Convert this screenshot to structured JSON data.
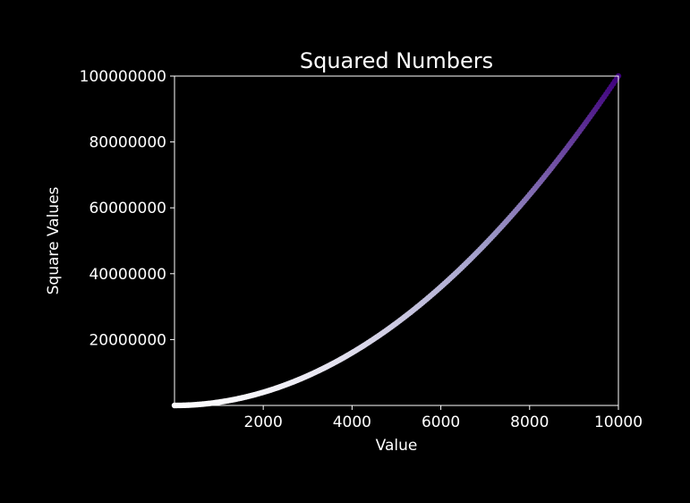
{
  "chart_data": {
    "type": "scatter",
    "title": "Squared Numbers",
    "xlabel": "Value",
    "ylabel": "Square Values",
    "x_range": [
      1,
      10000
    ],
    "xlim": [
      1,
      10000
    ],
    "ylim": [
      1,
      100000000
    ],
    "x_ticks": [
      2000,
      4000,
      6000,
      8000,
      10000
    ],
    "x_tick_labels": [
      "2000",
      "4000",
      "6000",
      "8000",
      "10000"
    ],
    "y_ticks": [
      20000000,
      40000000,
      60000000,
      80000000,
      100000000
    ],
    "y_tick_labels": [
      "20000000",
      "40000000",
      "60000000",
      "80000000",
      "100000000"
    ],
    "function": "y = x^2",
    "colormap": "Purples",
    "colors": {
      "background": "#000000",
      "foreground": "#ffffff",
      "colormap_low": "#fcfbfd",
      "colormap_mid": "#9e9ac8",
      "colormap_high": "#3f007d"
    },
    "grid": false,
    "legend": false
  }
}
